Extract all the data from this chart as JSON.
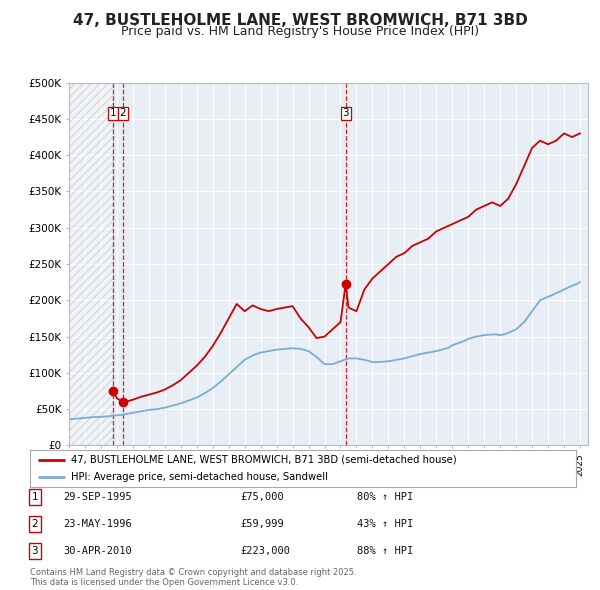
{
  "title": "47, BUSTLEHOLME LANE, WEST BROMWICH, B71 3BD",
  "subtitle": "Price paid vs. HM Land Registry's House Price Index (HPI)",
  "title_fontsize": 11,
  "subtitle_fontsize": 9,
  "background_color": "#ffffff",
  "plot_bg_color": "#e8eef5",
  "grid_color": "#ffffff",
  "ylim": [
    0,
    500000
  ],
  "yticks": [
    0,
    50000,
    100000,
    150000,
    200000,
    250000,
    300000,
    350000,
    400000,
    450000,
    500000
  ],
  "ytick_labels": [
    "£0",
    "£50K",
    "£100K",
    "£150K",
    "£200K",
    "£250K",
    "£300K",
    "£350K",
    "£400K",
    "£450K",
    "£500K"
  ],
  "sale_color": "#cc0000",
  "hpi_color": "#7aadd4",
  "sale_marker_color": "#cc0000",
  "vline_color": "#cc0000",
  "xmin": 1993,
  "xmax": 2025.5,
  "transactions": [
    {
      "num": 1,
      "date_str": "29-SEP-1995",
      "year": 1995.75,
      "price": 75000,
      "pct": "80%",
      "direction": "↑"
    },
    {
      "num": 2,
      "date_str": "23-MAY-1996",
      "year": 1996.38,
      "price": 59999,
      "pct": "43%",
      "direction": "↑"
    },
    {
      "num": 3,
      "date_str": "30-APR-2010",
      "year": 2010.33,
      "price": 223000,
      "pct": "88%",
      "direction": "↑"
    }
  ],
  "legend_line1": "47, BUSTLEHOLME LANE, WEST BROMWICH, B71 3BD (semi-detached house)",
  "legend_line2": "HPI: Average price, semi-detached house, Sandwell",
  "footnote": "Contains HM Land Registry data © Crown copyright and database right 2025.\nThis data is licensed under the Open Government Licence v3.0.",
  "hpi_years": [
    1993.0,
    1993.25,
    1993.5,
    1993.75,
    1994.0,
    1994.25,
    1994.5,
    1994.75,
    1995.0,
    1995.25,
    1995.5,
    1995.75,
    1996.0,
    1996.25,
    1996.5,
    1996.75,
    1997.0,
    1997.25,
    1997.5,
    1997.75,
    1998.0,
    1998.25,
    1998.5,
    1998.75,
    1999.0,
    1999.25,
    1999.5,
    1999.75,
    2000.0,
    2000.25,
    2000.5,
    2000.75,
    2001.0,
    2001.25,
    2001.5,
    2001.75,
    2002.0,
    2002.25,
    2002.5,
    2002.75,
    2003.0,
    2003.25,
    2003.5,
    2003.75,
    2004.0,
    2004.25,
    2004.5,
    2004.75,
    2005.0,
    2005.25,
    2005.5,
    2005.75,
    2006.0,
    2006.25,
    2006.5,
    2006.75,
    2007.0,
    2007.25,
    2007.5,
    2007.75,
    2008.0,
    2008.25,
    2008.5,
    2008.75,
    2009.0,
    2009.25,
    2009.5,
    2009.75,
    2010.0,
    2010.25,
    2010.5,
    2010.75,
    2011.0,
    2011.25,
    2011.5,
    2011.75,
    2012.0,
    2012.25,
    2012.5,
    2012.75,
    2013.0,
    2013.25,
    2013.5,
    2013.75,
    2014.0,
    2014.25,
    2014.5,
    2014.75,
    2015.0,
    2015.25,
    2015.5,
    2015.75,
    2016.0,
    2016.25,
    2016.5,
    2016.75,
    2017.0,
    2017.25,
    2017.5,
    2017.75,
    2018.0,
    2018.25,
    2018.5,
    2018.75,
    2019.0,
    2019.25,
    2019.5,
    2019.75,
    2020.0,
    2020.25,
    2020.5,
    2020.75,
    2021.0,
    2021.25,
    2021.5,
    2021.75,
    2022.0,
    2022.25,
    2022.5,
    2022.75,
    2023.0,
    2023.25,
    2023.5,
    2023.75,
    2024.0,
    2024.25,
    2024.5,
    2024.75,
    2025.0
  ],
  "hpi_values": [
    36000,
    36500,
    37000,
    37500,
    38000,
    38500,
    39000,
    39200,
    39500,
    39800,
    40200,
    41000,
    41500,
    42000,
    43000,
    44000,
    45000,
    46000,
    47000,
    48000,
    49000,
    49500,
    50000,
    51000,
    52000,
    53500,
    55000,
    56500,
    58000,
    60000,
    62000,
    64000,
    66000,
    69000,
    72000,
    75500,
    79000,
    83500,
    88000,
    93000,
    98000,
    103000,
    108000,
    113000,
    118000,
    121000,
    124000,
    126000,
    128000,
    129000,
    130000,
    131000,
    132000,
    132500,
    133000,
    133500,
    134000,
    133500,
    133000,
    131500,
    130000,
    126000,
    122000,
    117000,
    112000,
    112000,
    112000,
    114000,
    116000,
    118000,
    120000,
    120000,
    120000,
    119000,
    118000,
    116500,
    115000,
    115000,
    115000,
    115500,
    116000,
    117000,
    118000,
    119000,
    120000,
    121500,
    123000,
    124500,
    126000,
    127000,
    128000,
    129000,
    130000,
    131500,
    133000,
    134500,
    138000,
    140000,
    142000,
    144000,
    147000,
    148500,
    150000,
    151000,
    152000,
    152500,
    153000,
    153000,
    152000,
    153000,
    155000,
    157500,
    160000,
    165000,
    170000,
    177500,
    185000,
    192500,
    200000,
    202500,
    205000,
    207000,
    210000,
    212000,
    215000,
    217500,
    220000,
    222000,
    225000
  ],
  "sale_years": [
    1995.75,
    1996.38,
    2010.33
  ],
  "sale_prices": [
    75000,
    59999,
    223000
  ],
  "hpi_scaled_years": [
    1993.0,
    1993.25,
    1993.5,
    1993.75,
    1994.0,
    1994.25,
    1994.5,
    1994.75,
    1995.0,
    1995.25,
    1995.5,
    1995.75,
    1996.0,
    1996.25,
    1996.5,
    1996.75,
    1997.0,
    1997.25,
    1997.5,
    1997.75,
    1998.0,
    1998.25,
    1998.5,
    1998.75,
    1999.0,
    1999.25,
    1999.5,
    1999.75,
    2000.0,
    2000.25,
    2000.5,
    2000.75,
    2001.0,
    2001.25,
    2001.5,
    2001.75,
    2002.0,
    2002.25,
    2002.5,
    2002.75,
    2003.0,
    2003.25,
    2003.5,
    2003.75,
    2004.0,
    2004.25,
    2004.5,
    2004.75,
    2005.0,
    2005.25,
    2005.5,
    2005.75,
    2006.0,
    2006.25,
    2006.5,
    2006.75,
    2007.0,
    2007.25,
    2007.5,
    2007.75,
    2008.0,
    2008.25,
    2008.5,
    2008.75,
    2009.0,
    2009.25,
    2009.5,
    2009.75,
    2010.0,
    2010.25,
    2010.5,
    2010.75,
    2011.0,
    2011.25,
    2011.5,
    2011.75,
    2012.0,
    2012.25,
    2012.5,
    2012.75,
    2013.0,
    2013.25,
    2013.5,
    2013.75,
    2014.0,
    2014.25,
    2014.5,
    2014.75,
    2015.0,
    2015.25,
    2015.5,
    2015.75,
    2016.0,
    2016.25,
    2016.5,
    2016.75,
    2017.0,
    2017.25,
    2017.5,
    2017.75,
    2018.0,
    2018.25,
    2018.5,
    2018.75,
    2019.0,
    2019.25,
    2019.5,
    2019.75,
    2020.0,
    2020.25,
    2020.5,
    2020.75,
    2021.0,
    2021.25,
    2021.5,
    2021.75,
    2022.0,
    2022.25,
    2022.5,
    2022.75,
    2023.0,
    2023.25,
    2023.5,
    2023.75,
    2024.0,
    2024.25,
    2024.5,
    2024.75,
    2025.0
  ],
  "sale_line_years": [
    1995.75,
    1996.0,
    1996.38,
    1996.5,
    1997.0,
    1997.5,
    1998.0,
    1998.5,
    1999.0,
    1999.5,
    2000.0,
    2000.5,
    2001.0,
    2001.5,
    2002.0,
    2002.5,
    2003.0,
    2003.5,
    2004.0,
    2004.5,
    2005.0,
    2005.5,
    2006.0,
    2006.5,
    2007.0,
    2007.5,
    2008.0,
    2008.5,
    2009.0,
    2009.5,
    2010.0,
    2010.33,
    2010.5,
    2011.0,
    2011.5,
    2012.0,
    2012.5,
    2013.0,
    2013.5,
    2014.0,
    2014.5,
    2015.0,
    2015.5,
    2016.0,
    2016.5,
    2017.0,
    2017.5,
    2018.0,
    2018.5,
    2019.0,
    2019.5,
    2020.0,
    2020.5,
    2021.0,
    2021.5,
    2022.0,
    2022.5,
    2023.0,
    2023.5,
    2024.0,
    2024.5,
    2025.0
  ],
  "sale_line_values": [
    75000,
    65000,
    59999,
    60000,
    63000,
    67000,
    70000,
    73000,
    77000,
    83000,
    90000,
    100000,
    110000,
    122000,
    137000,
    155000,
    175000,
    195000,
    185000,
    193000,
    188000,
    185000,
    188000,
    190000,
    192000,
    175000,
    163000,
    148000,
    150000,
    160000,
    170000,
    223000,
    190000,
    185000,
    215000,
    230000,
    240000,
    250000,
    260000,
    265000,
    275000,
    280000,
    285000,
    295000,
    300000,
    305000,
    310000,
    315000,
    325000,
    330000,
    335000,
    330000,
    340000,
    360000,
    385000,
    410000,
    420000,
    415000,
    420000,
    430000,
    425000,
    430000
  ]
}
